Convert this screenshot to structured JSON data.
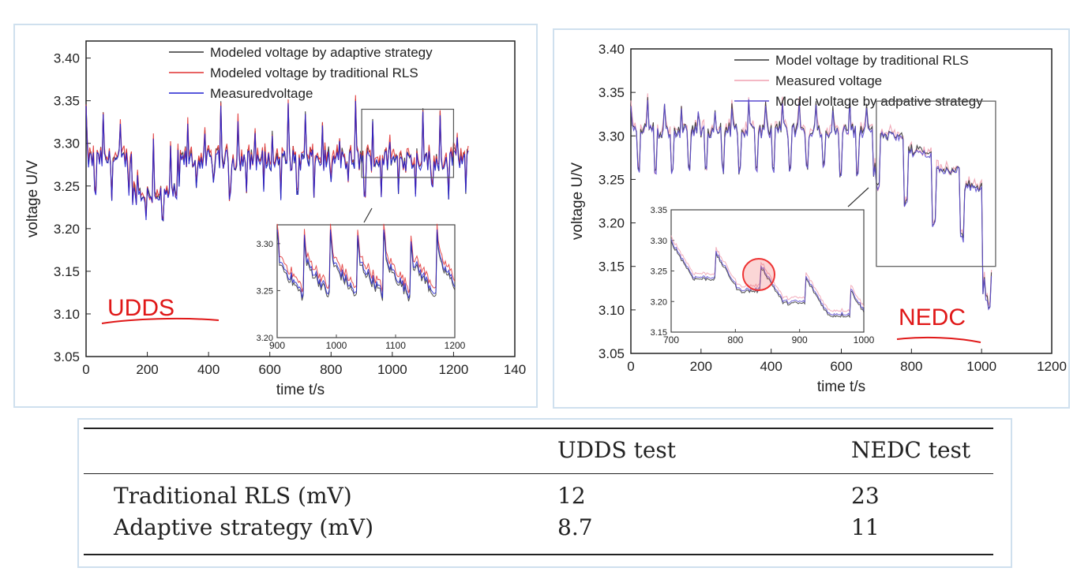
{
  "chart_data": [
    {
      "type": "line",
      "title": "",
      "xlabel": "time t/s",
      "ylabel": "voltage U/V",
      "xlim": [
        0,
        1400
      ],
      "ylim": [
        3.05,
        3.42
      ],
      "xticks": [
        "0",
        "200",
        "400",
        "600",
        "800",
        "1000",
        "1200",
        "140"
      ],
      "yticks": [
        "3.05",
        "3.10",
        "3.15",
        "3.20",
        "3.25",
        "3.30",
        "3.35",
        "3.40"
      ],
      "legend_position": "top-right",
      "series": [
        {
          "name": "Modeled voltage by adaptive strategy",
          "color": "#333333"
        },
        {
          "name": "Modeled voltage by traditional RLS",
          "color": "#e03030"
        },
        {
          "name": "Measuredvoltage",
          "color": "#2020d0"
        }
      ],
      "annotation": "UDDS",
      "annotation_color": "#e01818",
      "inset": {
        "xlim": [
          900,
          1200
        ],
        "ylim": [
          3.2,
          3.32
        ],
        "xticks": [
          "900",
          "1000",
          "1100",
          "1200"
        ],
        "yticks": [
          "3.20",
          "3.25",
          "3.30"
        ],
        "zoom_box_x": [
          900,
          1200
        ],
        "zoom_box_y": [
          3.26,
          3.34
        ]
      }
    },
    {
      "type": "line",
      "title": "",
      "xlabel": "time t/s",
      "ylabel": "voltage U/V",
      "xlim": [
        0,
        1200
      ],
      "ylim": [
        3.05,
        3.4
      ],
      "xticks": [
        "0",
        "200",
        "400",
        "600",
        "800",
        "1000",
        "1200"
      ],
      "yticks": [
        "3.05",
        "3.10",
        "3.15",
        "3.20",
        "3.25",
        "3.30",
        "3.35",
        "3.40"
      ],
      "legend_position": "top-right",
      "series": [
        {
          "name": "Model voltage by traditional RLS",
          "color": "#333333"
        },
        {
          "name": "Measured voltage",
          "color": "#f0a0b0"
        },
        {
          "name": "Model voltage by adpative strategy",
          "color": "#5a4ad0"
        }
      ],
      "annotation": "NEDC",
      "annotation_color": "#e01818",
      "inset": {
        "xlim": [
          700,
          1000
        ],
        "ylim": [
          3.15,
          3.35
        ],
        "xticks": [
          "700",
          "800",
          "900",
          "1000"
        ],
        "yticks": [
          "3.15",
          "3.20",
          "3.25",
          "3.30",
          "3.35"
        ],
        "zoom_box_x": [
          700,
          1040
        ],
        "zoom_box_y": [
          3.15,
          3.34
        ]
      }
    }
  ],
  "table": {
    "headers": [
      "",
      "UDDS test",
      "NEDC test"
    ],
    "rows": [
      [
        "Traditional RLS (mV)",
        "12",
        "23"
      ],
      [
        "Adaptive strategy (mV)",
        "8.7",
        "11"
      ]
    ]
  }
}
